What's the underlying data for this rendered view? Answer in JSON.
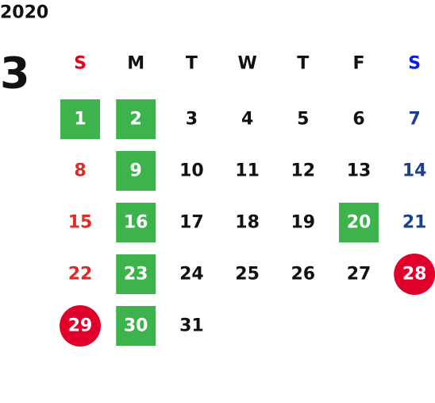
{
  "year": "2020",
  "month": "3",
  "weekdays": [
    "S",
    "M",
    "T",
    "W",
    "T",
    "F",
    "S"
  ],
  "weekday_colors": [
    "#e8001c",
    "#111111",
    "#111111",
    "#111111",
    "#111111",
    "#111111",
    "#0a22e0"
  ],
  "day_colors": [
    "#e02a2a",
    "#111111",
    "#111111",
    "#111111",
    "#111111",
    "#111111",
    "#1d3f92"
  ],
  "highlight_colors": {
    "green": "#3cb44b",
    "red": "#e0002b"
  },
  "weeks": [
    [
      {
        "label": "1",
        "highlight": "green"
      },
      {
        "label": "2",
        "highlight": "green"
      },
      {
        "label": "3"
      },
      {
        "label": "4"
      },
      {
        "label": "5"
      },
      {
        "label": "6"
      },
      {
        "label": "7"
      }
    ],
    [
      {
        "label": "8"
      },
      {
        "label": "9",
        "highlight": "green"
      },
      {
        "label": "10"
      },
      {
        "label": "11"
      },
      {
        "label": "12"
      },
      {
        "label": "13"
      },
      {
        "label": "14"
      }
    ],
    [
      {
        "label": "15"
      },
      {
        "label": "16",
        "highlight": "green"
      },
      {
        "label": "17"
      },
      {
        "label": "18"
      },
      {
        "label": "19"
      },
      {
        "label": "20",
        "highlight": "green"
      },
      {
        "label": "21"
      }
    ],
    [
      {
        "label": "22"
      },
      {
        "label": "23",
        "highlight": "green"
      },
      {
        "label": "24"
      },
      {
        "label": "25"
      },
      {
        "label": "26"
      },
      {
        "label": "27"
      },
      {
        "label": "28",
        "highlight": "red"
      }
    ],
    [
      {
        "label": "29",
        "highlight": "red"
      },
      {
        "label": "30",
        "highlight": "green"
      },
      {
        "label": "31"
      }
    ]
  ]
}
